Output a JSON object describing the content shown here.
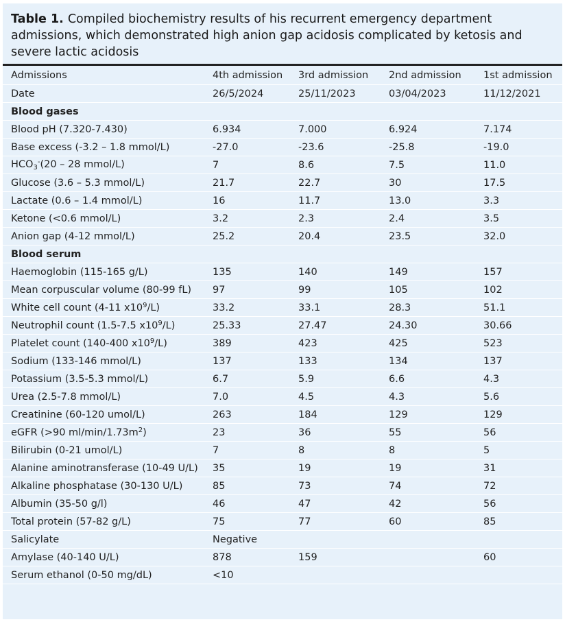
{
  "title": {
    "label": "Table 1.",
    "text": "Compiled biochemistry results of his recurrent emergency department admissions, which demonstrated high anion gap acidosis complicated by ketosis and severe lactic acidosis"
  },
  "table": {
    "header": [
      "Admissions",
      "4th admission",
      "3rd admission",
      "2nd admission",
      "1st admission"
    ],
    "rows": [
      {
        "label": [
          {
            "text": "Date"
          }
        ],
        "cells": [
          "26/5/2024",
          "25/11/2023",
          "03/04/2023",
          "11/12/2021"
        ]
      },
      {
        "section": "Blood gases"
      },
      {
        "label": [
          {
            "text": "Blood pH (7.320-7.430)"
          }
        ],
        "cells": [
          "6.934",
          "7.000",
          "6.924",
          "7.174"
        ]
      },
      {
        "label": [
          {
            "text": "Base excess (-3.2 – 1.8 mmol/L)"
          }
        ],
        "cells": [
          "-27.0",
          "-23.6",
          "-25.8",
          "-19.0"
        ]
      },
      {
        "label": [
          {
            "text": "HCO"
          },
          {
            "sub": "3"
          },
          {
            "sup": "-"
          },
          {
            "text": "(20 – 28 mmol/L)"
          }
        ],
        "cells": [
          "7",
          "8.6",
          "7.5",
          "11.0"
        ]
      },
      {
        "label": [
          {
            "text": "Glucose (3.6 – 5.3 mmol/L)"
          }
        ],
        "cells": [
          "21.7",
          "22.7",
          "30",
          "17.5"
        ]
      },
      {
        "label": [
          {
            "text": "Lactate (0.6 – 1.4 mmol/L)"
          }
        ],
        "cells": [
          "16",
          "11.7",
          "13.0",
          "3.3"
        ]
      },
      {
        "label": [
          {
            "text": "Ketone (<0.6 mmol/L)"
          }
        ],
        "cells": [
          "3.2",
          "2.3",
          "2.4",
          "3.5"
        ]
      },
      {
        "label": [
          {
            "text": "Anion gap (4-12 mmol/L)"
          }
        ],
        "cells": [
          "25.2",
          "20.4",
          "23.5",
          "32.0"
        ]
      },
      {
        "section": "Blood serum"
      },
      {
        "label": [
          {
            "text": "Haemoglobin (115-165 g/L)"
          }
        ],
        "cells": [
          "135",
          "140",
          "149",
          "157"
        ]
      },
      {
        "label": [
          {
            "text": "Mean corpuscular volume (80-99 fL)"
          }
        ],
        "cells": [
          "97",
          "99",
          "105",
          "102"
        ]
      },
      {
        "label": [
          {
            "text": "White cell count (4-11 x10"
          },
          {
            "sup": "9"
          },
          {
            "text": "/L)"
          }
        ],
        "cells": [
          "33.2",
          "33.1",
          "28.3",
          "51.1"
        ]
      },
      {
        "label": [
          {
            "text": "Neutrophil count (1.5-7.5 x10"
          },
          {
            "sup": "9"
          },
          {
            "text": "/L)"
          }
        ],
        "cells": [
          "25.33",
          "27.47",
          "24.30",
          "30.66"
        ]
      },
      {
        "label": [
          {
            "text": "Platelet count (140-400 x10"
          },
          {
            "sup": "9"
          },
          {
            "text": "/L)"
          }
        ],
        "cells": [
          "389",
          "423",
          "425",
          "523"
        ]
      },
      {
        "label": [
          {
            "text": "Sodium (133-146 mmol/L)"
          }
        ],
        "cells": [
          "137",
          "133",
          "134",
          "137"
        ]
      },
      {
        "label": [
          {
            "text": "Potassium (3.5-5.3 mmol/L)"
          }
        ],
        "cells": [
          "6.7",
          "5.9",
          "6.6",
          "4.3"
        ]
      },
      {
        "label": [
          {
            "text": "Urea (2.5-7.8 mmol/L)"
          }
        ],
        "cells": [
          "7.0",
          "4.5",
          "4.3",
          "5.6"
        ]
      },
      {
        "label": [
          {
            "text": "Creatinine (60-120 umol/L)"
          }
        ],
        "cells": [
          "263",
          "184",
          "129",
          "129"
        ]
      },
      {
        "label": [
          {
            "text": "eGFR (>90 ml/min/1.73m"
          },
          {
            "sup": "2"
          },
          {
            "text": ")"
          }
        ],
        "cells": [
          "23",
          "36",
          "55",
          "56"
        ]
      },
      {
        "label": [
          {
            "text": "Bilirubin (0-21 umol/L)"
          }
        ],
        "cells": [
          "7",
          "8",
          "8",
          "5"
        ]
      },
      {
        "label": [
          {
            "text": "Alanine aminotransferase (10-49 U/L)"
          }
        ],
        "cells": [
          "35",
          "19",
          "19",
          "31"
        ]
      },
      {
        "label": [
          {
            "text": "Alkaline phosphatase (30-130 U/L)"
          }
        ],
        "cells": [
          "85",
          "73",
          "74",
          "72"
        ]
      },
      {
        "label": [
          {
            "text": "Albumin (35-50 g/l)"
          }
        ],
        "cells": [
          "46",
          "47",
          "42",
          "56"
        ]
      },
      {
        "label": [
          {
            "text": "Total protein (57-82 g/L)"
          }
        ],
        "cells": [
          "75",
          "77",
          "60",
          "85"
        ]
      },
      {
        "label": [
          {
            "text": "Salicylate"
          }
        ],
        "cells": [
          "Negative",
          null,
          null,
          null
        ]
      },
      {
        "label": [
          {
            "text": "Amylase (40-140 U/L)"
          }
        ],
        "cells": [
          "878",
          "159",
          null,
          "60"
        ]
      },
      {
        "label": [
          {
            "text": "Serum ethanol (0-50 mg/dL)"
          }
        ],
        "cells": [
          "<10",
          null,
          null,
          null
        ]
      }
    ]
  }
}
